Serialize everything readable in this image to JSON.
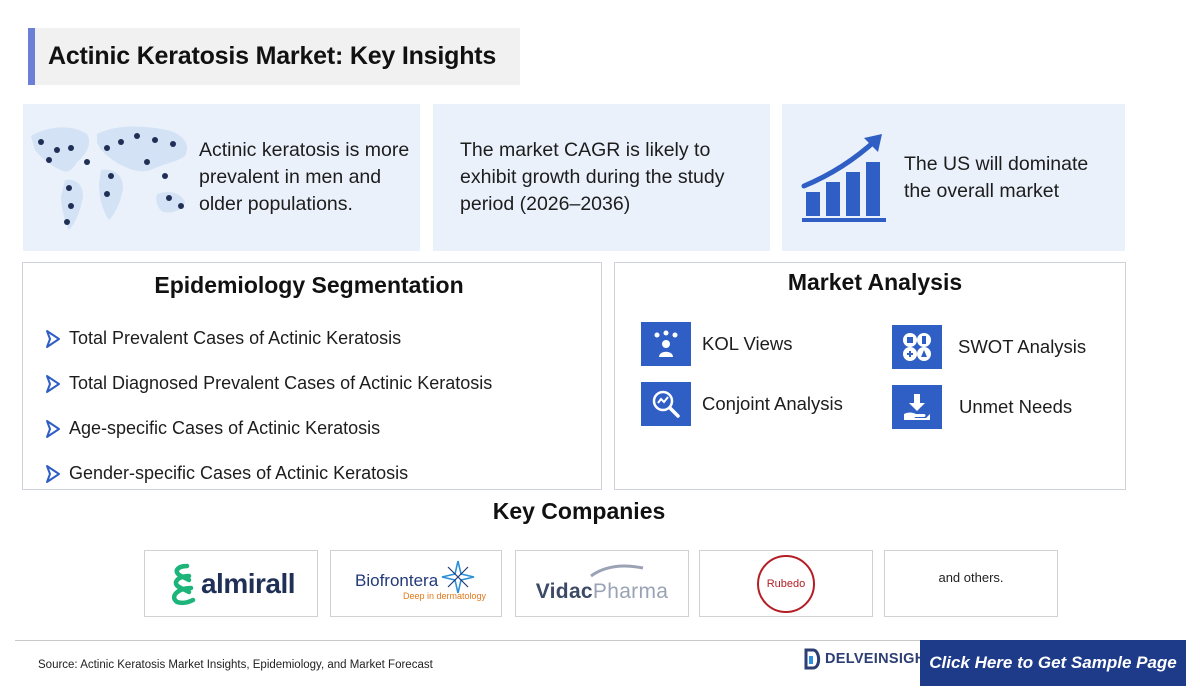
{
  "header": {
    "title": "Actinic Keratosis Market: Key Insights"
  },
  "insights": [
    {
      "text": "Actinic keratosis is more prevalent in men and older populations.",
      "icon": "world-map-icon"
    },
    {
      "text": "The market CAGR is likely to exhibit growth during the study period (2026–2036)"
    },
    {
      "text": "The US will dominate the overall market",
      "icon": "growth-chart-icon"
    }
  ],
  "epidemiology": {
    "title": "Epidemiology Segmentation",
    "items": [
      "Total Prevalent Cases of Actinic Keratosis",
      "Total Diagnosed Prevalent Cases of Actinic Keratosis",
      "Age-specific Cases of Actinic Keratosis",
      "Gender-specific Cases of Actinic Keratosis"
    ]
  },
  "market_analysis": {
    "title": "Market Analysis",
    "items": [
      {
        "label": "KOL Views",
        "icon": "kol-icon"
      },
      {
        "label": "SWOT Analysis",
        "icon": "swot-icon"
      },
      {
        "label": "Conjoint Analysis",
        "icon": "conjoint-icon"
      },
      {
        "label": "Unmet Needs",
        "icon": "unmet-needs-icon"
      }
    ]
  },
  "key_companies": {
    "title": "Key Companies",
    "logos": [
      {
        "name": "almirall"
      },
      {
        "name": "Biofrontera",
        "tagline": "Deep in dermatology"
      },
      {
        "name_a": "Vidac",
        "name_b": "Pharma"
      },
      {
        "name": "Rubedo"
      },
      {
        "name": "and others."
      }
    ]
  },
  "footer": {
    "source": "Source: Actinic Keratosis Market Insights, Epidemiology, and Market Forecast",
    "brand": "DELVEINSIGHT",
    "cta": "Click Here to Get Sample Page"
  },
  "colors": {
    "accent": "#6b7fd7",
    "primary_blue": "#2f5fc4",
    "cta_blue": "#1e3b8a",
    "almirall_green": "#1db47a"
  }
}
